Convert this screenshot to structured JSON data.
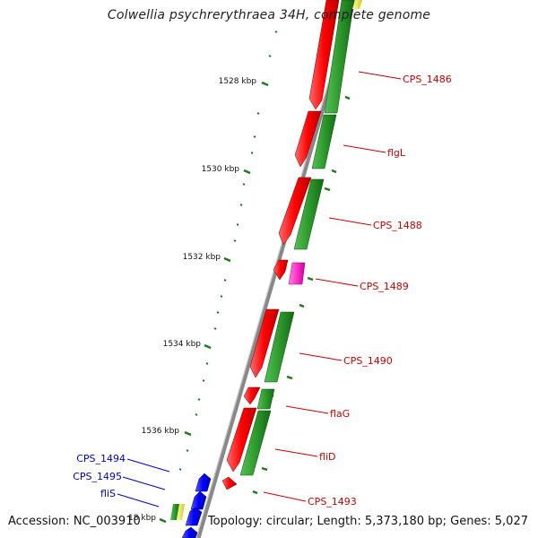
{
  "title": "Colwellia psychrerythraea 34H, complete genome",
  "footer": {
    "accession": "Accession: NC_003910",
    "topology": "Topology: circular; Length: 5,373,180 bp; Genes: 5,027"
  },
  "ticks": [
    {
      "label": "1528 kbp"
    },
    {
      "label": "1530 kbp"
    },
    {
      "label": "1532 kbp"
    },
    {
      "label": "1534 kbp"
    },
    {
      "label": "1536 kbp"
    },
    {
      "label": "18 kbp"
    }
  ],
  "genes_right": [
    {
      "label": "CPS_1486"
    },
    {
      "label": "flgL"
    },
    {
      "label": "CPS_1488"
    },
    {
      "label": "CPS_1489"
    },
    {
      "label": "CPS_1490"
    },
    {
      "label": "flaG"
    },
    {
      "label": "fliD"
    },
    {
      "label": "CPS_1493"
    }
  ],
  "genes_left": [
    {
      "label": "CPS_1494"
    },
    {
      "label": "CPS_1495"
    },
    {
      "label": "fliS"
    }
  ],
  "colors": {
    "forward_gene": "#ff0000",
    "cds_feature": "#2e9a2e",
    "reverse_gene": "#0000ff",
    "rna_gene": "#ff33cc",
    "backbone": "#888888",
    "label_right": "#cc0000",
    "label_left": "#0000cc",
    "tick": "#1a7a1a"
  }
}
